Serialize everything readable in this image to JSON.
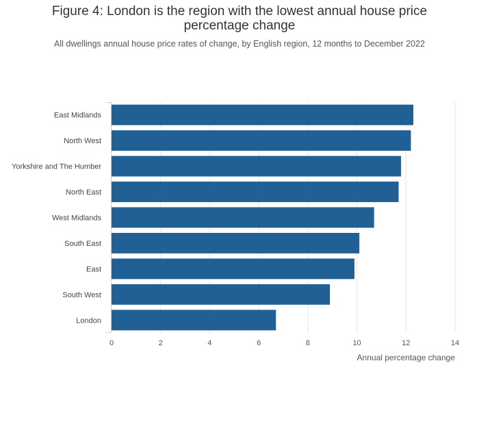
{
  "title": "Figure 4: London is the region with the lowest annual house price percentage change",
  "subtitle": "All dwellings annual house price rates of change, by English region, 12 months to December 2022",
  "chart_data": {
    "type": "bar",
    "orientation": "horizontal",
    "categories": [
      "East Midlands",
      "North West",
      "Yorkshire and The Humber",
      "North East",
      "West Midlands",
      "South East",
      "East",
      "South West",
      "London"
    ],
    "values": [
      12.3,
      12.2,
      11.8,
      11.7,
      10.7,
      10.1,
      9.9,
      8.9,
      6.7
    ],
    "xlabel": "Annual percentage change",
    "ylabel": "",
    "xlim": [
      0,
      14
    ],
    "xticks": [
      "0",
      "2",
      "4",
      "6",
      "8",
      "10",
      "12",
      "14"
    ],
    "grid": true,
    "bar_color": "#206095",
    "grid_color": "#e6e6e6",
    "axis_color": "#cccccc"
  }
}
